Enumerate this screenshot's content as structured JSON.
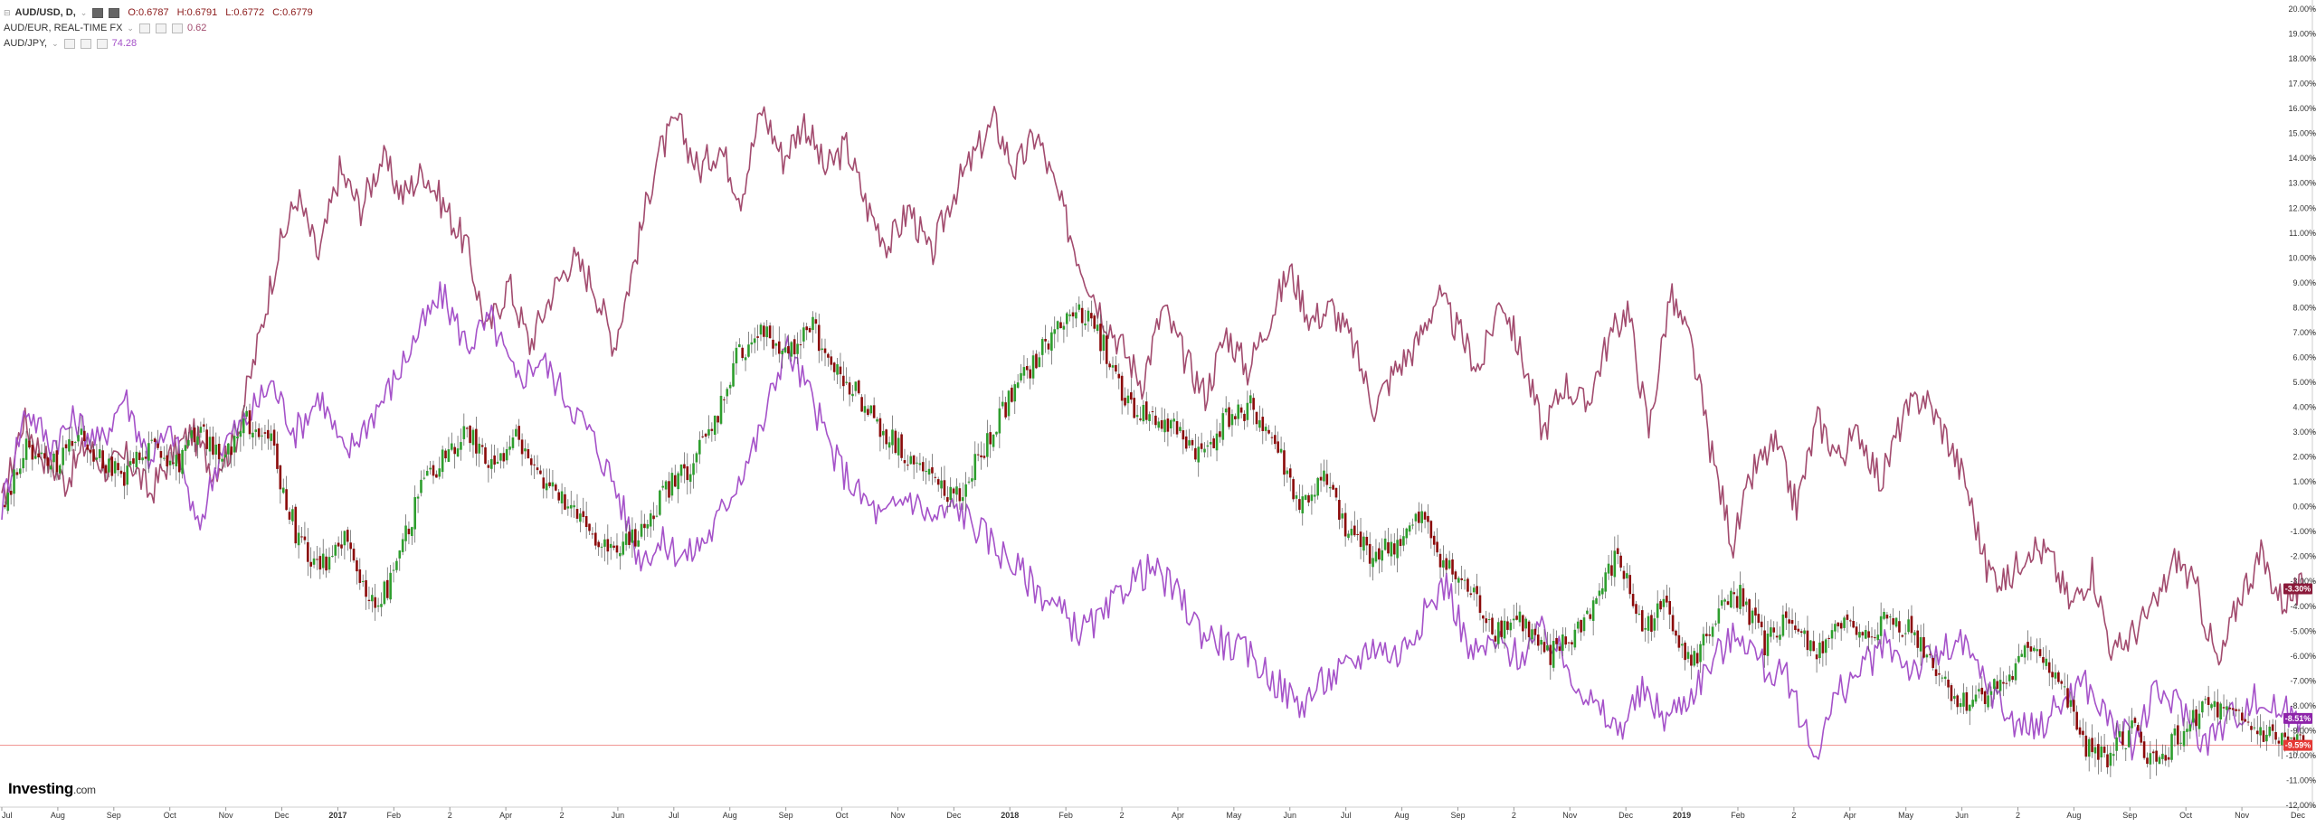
{
  "legend": {
    "main": {
      "symbol": "AUD/USD, D,",
      "open": "O:0.6787",
      "high": "H:0.6791",
      "low": "L:0.6772",
      "close": "C:0.6779"
    },
    "audeur": {
      "symbol": "AUD/EUR, REAL-TIME FX",
      "value": "0.62"
    },
    "audjpy": {
      "symbol": "AUD/JPY,",
      "value": "74.28"
    }
  },
  "brand": {
    "name": "Investing",
    "suffix": ".com"
  },
  "colors": {
    "up": "#2e9e2e",
    "down": "#8b0a0a",
    "audeur": "#a24b6e",
    "audjpy": "#a552c9",
    "baseline": "#e53935",
    "grid": "#e8e8e8"
  },
  "chart_data": {
    "type": "line",
    "title": "AUD/USD, D,",
    "ylim": [
      -12,
      20
    ],
    "y_ticks": [
      "20.00%",
      "19.00%",
      "18.00%",
      "17.00%",
      "16.00%",
      "15.00%",
      "14.00%",
      "13.00%",
      "12.00%",
      "11.00%",
      "10.00%",
      "9.00%",
      "8.00%",
      "7.00%",
      "6.00%",
      "5.00%",
      "4.00%",
      "3.00%",
      "2.00%",
      "1.00%",
      "0.00%",
      "-1.00%",
      "-2.00%",
      "-3.00%",
      "-4.00%",
      "-5.00%",
      "-6.00%",
      "-7.00%",
      "-8.00%",
      "-9.00%",
      "-10.00%",
      "-11.00%",
      "-12.00%"
    ],
    "x_ticks": [
      "Jul",
      "Aug",
      "Sep",
      "Oct",
      "Nov",
      "Dec",
      "2017",
      "Feb",
      "2",
      "Apr",
      "2",
      "Jun",
      "Jul",
      "Aug",
      "Sep",
      "Oct",
      "Nov",
      "Dec",
      "2018",
      "Feb",
      "2",
      "Apr",
      "May",
      "Jun",
      "Jul",
      "Aug",
      "Sep",
      "2",
      "Nov",
      "Dec",
      "2019",
      "Feb",
      "2",
      "Apr",
      "May",
      "Jun",
      "2",
      "Aug",
      "Sep",
      "Oct",
      "Nov",
      "Dec"
    ],
    "bold_x_ticks": [
      "2017",
      "2018",
      "2019"
    ],
    "badges": [
      {
        "label": "-3.30%",
        "value": -3.3,
        "color": "#8b1a3a"
      },
      {
        "label": "-8.51%",
        "value": -8.51,
        "color": "#8e24aa"
      },
      {
        "label": "-9.59%",
        "value": -9.59,
        "color": "#e53935"
      }
    ],
    "series": [
      {
        "name": "AUD/EUR, REAL-TIME FX",
        "color": "#a24b6e",
        "values": [
          0.0,
          3.5,
          2.0,
          1.0,
          2.5,
          1.5,
          2.0,
          0.5,
          2.0,
          3.0,
          1.5,
          2.5,
          6.0,
          10.0,
          12.5,
          10.0,
          13.5,
          12.0,
          14.0,
          12.5,
          13.5,
          12.0,
          10.5,
          7.0,
          9.0,
          6.5,
          8.5,
          10.0,
          9.0,
          6.5,
          10.0,
          14.0,
          15.5,
          13.5,
          14.5,
          12.5,
          16.0,
          14.0,
          15.5,
          13.5,
          14.5,
          12.0,
          10.5,
          12.0,
          10.0,
          12.5,
          14.0,
          15.5,
          13.5,
          15.0,
          12.5,
          10.0,
          8.0,
          6.5,
          5.0,
          8.0,
          6.0,
          4.5,
          7.0,
          5.5,
          7.5,
          9.5,
          7.5,
          8.0,
          6.5,
          4.0,
          5.5,
          6.5,
          8.5,
          7.0,
          5.5,
          8.5,
          6.0,
          3.0,
          5.0,
          4.0,
          6.5,
          8.0,
          3.0,
          8.5,
          6.5,
          2.0,
          -1.5,
          1.5,
          2.5,
          0.0,
          3.5,
          2.0,
          3.0,
          1.0,
          3.5,
          4.5,
          3.0,
          1.0,
          -2.5,
          -3.0,
          -1.5,
          -2.0,
          -4.0,
          -2.5,
          -6.0,
          -5.0,
          -4.0,
          -2.0,
          -3.5,
          -6.5,
          -3.5,
          -2.0,
          -3.8,
          -3.3
        ]
      },
      {
        "name": "AUD/JPY,",
        "color": "#a552c9",
        "values": [
          0.0,
          4.0,
          2.5,
          3.5,
          2.5,
          4.5,
          2.0,
          3.0,
          -1.0,
          2.5,
          3.5,
          5.0,
          3.0,
          4.5,
          2.0,
          3.5,
          5.0,
          7.0,
          8.5,
          6.5,
          7.5,
          5.0,
          6.0,
          4.5,
          3.0,
          1.0,
          -2.0,
          -1.5,
          -2.0,
          -1.0,
          1.0,
          3.0,
          6.5,
          4.5,
          2.0,
          0.5,
          -0.5,
          0.5,
          -0.5,
          0.0,
          -1.0,
          -2.0,
          -3.0,
          -4.0,
          -5.0,
          -4.5,
          -3.0,
          -2.5,
          -3.5,
          -5.0,
          -5.5,
          -6.0,
          -7.0,
          -8.0,
          -7.0,
          -6.5,
          -5.5,
          -6.0,
          -4.5,
          -3.0,
          -6.0,
          -5.5,
          -6.0,
          -5.0,
          -6.5,
          -8.0,
          -9.0,
          -7.5,
          -8.5,
          -7.5,
          -6.0,
          -5.0,
          -6.5,
          -7.0,
          -10.0,
          -7.5,
          -6.5,
          -5.5,
          -6.5,
          -6.0,
          -5.5,
          -7.0,
          -8.5,
          -9.0,
          -8.0,
          -7.0,
          -8.5,
          -9.5,
          -7.5,
          -8.0,
          -9.5,
          -8.5,
          -7.8,
          -8.2,
          -8.51
        ]
      },
      {
        "name": "AUD/USD, D,",
        "color": "#555555",
        "type": "candlestick",
        "values": [
          0.0,
          2.5,
          1.5,
          3.0,
          2.0,
          1.0,
          2.5,
          1.5,
          3.0,
          2.0,
          3.5,
          2.5,
          -1.0,
          -2.5,
          -1.0,
          -4.0,
          -3.0,
          0.5,
          2.0,
          3.0,
          1.5,
          3.0,
          1.0,
          0.0,
          -1.0,
          -2.0,
          -1.0,
          0.5,
          1.5,
          3.0,
          6.0,
          7.0,
          6.0,
          7.5,
          5.5,
          4.5,
          3.0,
          2.0,
          1.0,
          0.5,
          2.0,
          4.0,
          5.5,
          7.0,
          8.0,
          6.5,
          4.0,
          3.5,
          3.0,
          2.0,
          3.5,
          4.0,
          2.5,
          0.0,
          1.0,
          -1.0,
          -2.0,
          -1.5,
          -0.5,
          -2.5,
          -3.5,
          -5.0,
          -4.5,
          -6.0,
          -5.5,
          -4.0,
          -2.0,
          -5.0,
          -4.0,
          -6.5,
          -4.5,
          -3.5,
          -5.5,
          -4.5,
          -6.0,
          -4.5,
          -5.5,
          -4.5,
          -5.0,
          -6.5,
          -8.0,
          -7.5,
          -7.0,
          -5.5,
          -7.0,
          -9.5,
          -10.0,
          -9.0,
          -10.5,
          -9.0,
          -8.0,
          -8.5,
          -9.0,
          -9.4,
          -9.59
        ]
      }
    ]
  }
}
